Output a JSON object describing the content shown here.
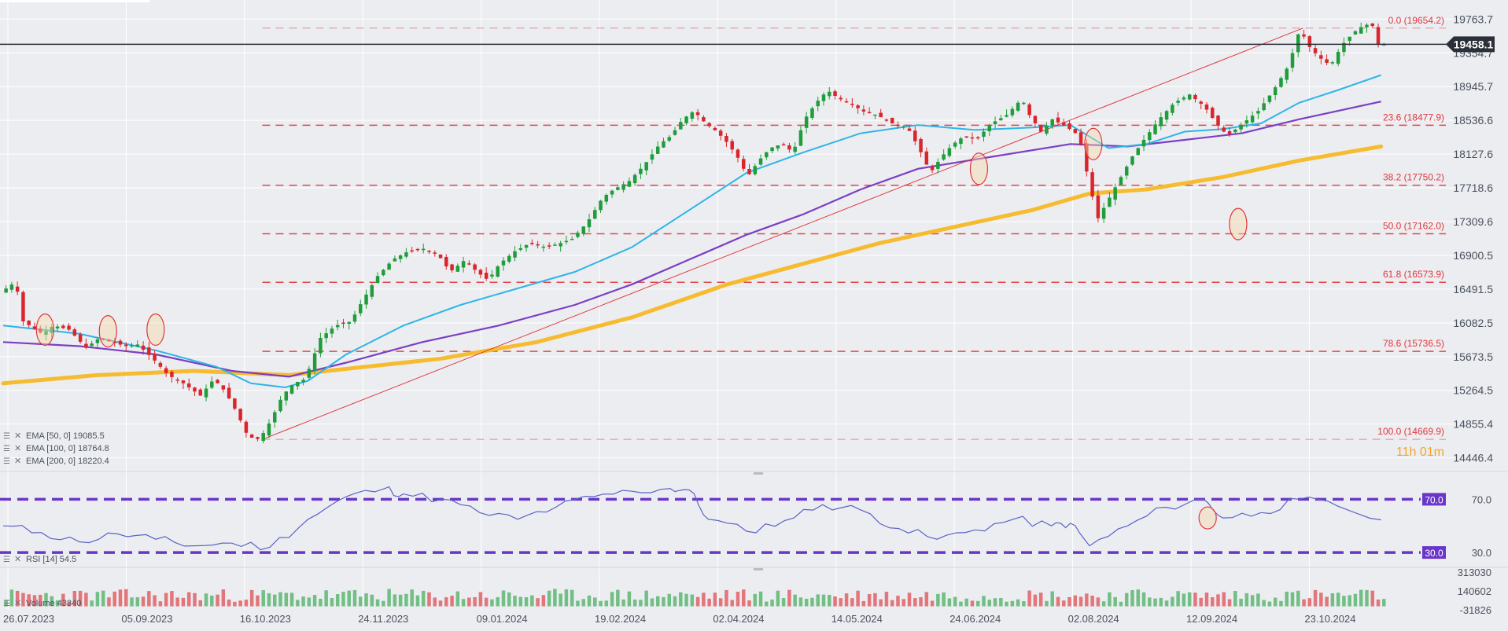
{
  "chart_data": {
    "type": "candlestick",
    "main": {
      "ylim": [
        14300,
        19900
      ],
      "y_ticks": [
        "19763.7",
        "19354.7",
        "18945.7",
        "18536.6",
        "18127.6",
        "17718.6",
        "17309.6",
        "16900.5",
        "16491.5",
        "16082.5",
        "15673.5",
        "15264.5",
        "14855.4",
        "14446.4"
      ],
      "current_price": 19458.1,
      "current_price_label": "19458.1",
      "countdown": "11h 01m",
      "fib_levels": [
        {
          "label": "0.0 (19654.2)",
          "value": 19654.2
        },
        {
          "label": "23.6 (18477.9)",
          "value": 18477.9
        },
        {
          "label": "38.2 (17750.2)",
          "value": 17750.2
        },
        {
          "label": "50.0 (17162.0)",
          "value": 17162.0
        },
        {
          "label": "61.8 (16573.9)",
          "value": 16573.9
        },
        {
          "label": "78.6 (15736.5)",
          "value": 15736.5
        },
        {
          "label": "100.0 (14669.9)",
          "value": 14669.9
        }
      ],
      "indicators": [
        {
          "label": "EMA [50, 0] 19085.5",
          "color": "#2fb5e6",
          "value": 19085.5
        },
        {
          "label": "EMA [100, 0] 18764.8",
          "color": "#7b3fc4",
          "value": 18764.8
        },
        {
          "label": "EMA [200, 0] 18220.4",
          "color": "#f6bb2e",
          "value": 18220.4
        }
      ],
      "indicator_icons": [
        "settings-icon",
        "close-icon"
      ],
      "price_path": [
        [
          0,
          16450
        ],
        [
          8,
          16580
        ],
        [
          12,
          16100
        ],
        [
          22,
          15950
        ],
        [
          28,
          16050
        ],
        [
          36,
          16000
        ],
        [
          45,
          15780
        ],
        [
          52,
          15900
        ],
        [
          58,
          15850
        ],
        [
          66,
          15800
        ],
        [
          72,
          15820
        ],
        [
          80,
          15650
        ],
        [
          88,
          15450
        ],
        [
          96,
          15350
        ],
        [
          105,
          15200
        ],
        [
          112,
          15400
        ],
        [
          118,
          15250
        ],
        [
          124,
          15000
        ],
        [
          130,
          14700
        ],
        [
          136,
          14669.9
        ],
        [
          142,
          14900
        ],
        [
          148,
          15200
        ],
        [
          154,
          15350
        ],
        [
          160,
          15400
        ],
        [
          168,
          15900
        ],
        [
          176,
          16050
        ],
        [
          184,
          16100
        ],
        [
          190,
          16350
        ],
        [
          198,
          16650
        ],
        [
          206,
          16850
        ],
        [
          214,
          16950
        ],
        [
          222,
          16980
        ],
        [
          230,
          16900
        ],
        [
          236,
          16700
        ],
        [
          244,
          16850
        ],
        [
          250,
          16700
        ],
        [
          256,
          16600
        ],
        [
          262,
          16800
        ],
        [
          270,
          16950
        ],
        [
          278,
          17050
        ],
        [
          286,
          17000
        ],
        [
          294,
          17050
        ],
        [
          300,
          17100
        ],
        [
          308,
          17300
        ],
        [
          316,
          17600
        ],
        [
          322,
          17700
        ],
        [
          330,
          17800
        ],
        [
          338,
          18000
        ],
        [
          346,
          18250
        ],
        [
          352,
          18350
        ],
        [
          358,
          18550
        ],
        [
          364,
          18650
        ],
        [
          370,
          18500
        ],
        [
          376,
          18400
        ],
        [
          382,
          18250
        ],
        [
          388,
          18050
        ],
        [
          392,
          17850
        ],
        [
          398,
          18050
        ],
        [
          404,
          18200
        ],
        [
          410,
          18250
        ],
        [
          416,
          18150
        ],
        [
          422,
          18550
        ],
        [
          428,
          18750
        ],
        [
          434,
          18900
        ],
        [
          440,
          18800
        ],
        [
          446,
          18750
        ],
        [
          452,
          18650
        ],
        [
          460,
          18600
        ],
        [
          468,
          18500
        ],
        [
          476,
          18450
        ],
        [
          482,
          18200
        ],
        [
          488,
          17900
        ],
        [
          494,
          18100
        ],
        [
          500,
          18250
        ],
        [
          506,
          18350
        ],
        [
          512,
          18300
        ],
        [
          520,
          18500
        ],
        [
          528,
          18600
        ],
        [
          536,
          18800
        ],
        [
          540,
          18600
        ],
        [
          546,
          18400
        ],
        [
          552,
          18550
        ],
        [
          560,
          18450
        ],
        [
          566,
          18350
        ],
        [
          572,
          17700
        ],
        [
          576,
          17350
        ],
        [
          582,
          17600
        ],
        [
          588,
          17850
        ],
        [
          594,
          18100
        ],
        [
          600,
          18300
        ],
        [
          608,
          18550
        ],
        [
          616,
          18750
        ],
        [
          624,
          18850
        ],
        [
          632,
          18700
        ],
        [
          638,
          18500
        ],
        [
          644,
          18350
        ],
        [
          652,
          18500
        ],
        [
          660,
          18650
        ],
        [
          668,
          18900
        ],
        [
          676,
          19200
        ],
        [
          682,
          19654.2
        ],
        [
          686,
          19450
        ],
        [
          692,
          19300
        ],
        [
          698,
          19200
        ],
        [
          704,
          19450
        ],
        [
          710,
          19600
        ],
        [
          716,
          19700
        ],
        [
          720,
          19680
        ],
        [
          723,
          19458.1
        ]
      ],
      "ema50_path": [
        [
          0,
          16050
        ],
        [
          40,
          15950
        ],
        [
          80,
          15750
        ],
        [
          112,
          15550
        ],
        [
          130,
          15350
        ],
        [
          148,
          15300
        ],
        [
          160,
          15380
        ],
        [
          180,
          15700
        ],
        [
          210,
          16050
        ],
        [
          240,
          16300
        ],
        [
          270,
          16500
        ],
        [
          300,
          16700
        ],
        [
          330,
          17000
        ],
        [
          360,
          17450
        ],
        [
          390,
          17900
        ],
        [
          420,
          18150
        ],
        [
          450,
          18380
        ],
        [
          480,
          18480
        ],
        [
          510,
          18420
        ],
        [
          540,
          18450
        ],
        [
          560,
          18480
        ],
        [
          580,
          18200
        ],
        [
          600,
          18250
        ],
        [
          620,
          18400
        ],
        [
          640,
          18430
        ],
        [
          660,
          18500
        ],
        [
          680,
          18750
        ],
        [
          700,
          18900
        ],
        [
          723,
          19085.5
        ]
      ],
      "ema100_path": [
        [
          0,
          15850
        ],
        [
          40,
          15800
        ],
        [
          80,
          15700
        ],
        [
          120,
          15500
        ],
        [
          150,
          15430
        ],
        [
          180,
          15600
        ],
        [
          220,
          15850
        ],
        [
          260,
          16050
        ],
        [
          300,
          16300
        ],
        [
          330,
          16550
        ],
        [
          360,
          16850
        ],
        [
          390,
          17150
        ],
        [
          420,
          17400
        ],
        [
          450,
          17700
        ],
        [
          480,
          17950
        ],
        [
          520,
          18100
        ],
        [
          560,
          18250
        ],
        [
          590,
          18220
        ],
        [
          620,
          18300
        ],
        [
          650,
          18380
        ],
        [
          680,
          18550
        ],
        [
          700,
          18650
        ],
        [
          723,
          18764.8
        ]
      ],
      "ema200_path": [
        [
          0,
          15350
        ],
        [
          50,
          15450
        ],
        [
          100,
          15500
        ],
        [
          150,
          15450
        ],
        [
          190,
          15550
        ],
        [
          230,
          15650
        ],
        [
          280,
          15850
        ],
        [
          330,
          16150
        ],
        [
          380,
          16550
        ],
        [
          420,
          16800
        ],
        [
          460,
          17050
        ],
        [
          500,
          17250
        ],
        [
          540,
          17450
        ],
        [
          570,
          17650
        ],
        [
          600,
          17700
        ],
        [
          640,
          17850
        ],
        [
          680,
          18050
        ],
        [
          723,
          18220.4
        ]
      ],
      "trendline": [
        [
          136,
          14669.9
        ],
        [
          682,
          19654.2
        ]
      ],
      "highlight_markers": [
        [
          22,
          16000
        ],
        [
          55,
          15980
        ],
        [
          80,
          16000
        ],
        [
          512,
          17950
        ],
        [
          572,
          18250
        ],
        [
          648,
          17280
        ]
      ]
    },
    "rsi": {
      "label": "RSI [14] 54.5",
      "value": 54.5,
      "ylim": [
        20,
        85
      ],
      "y_ticks": [
        "70.0",
        "30.0"
      ],
      "level_labels": [
        "70.0",
        "30.0"
      ],
      "levels": [
        70,
        30
      ],
      "path": [
        [
          0,
          50
        ],
        [
          20,
          45
        ],
        [
          40,
          38
        ],
        [
          60,
          44
        ],
        [
          80,
          40
        ],
        [
          100,
          35
        ],
        [
          120,
          37
        ],
        [
          140,
          34
        ],
        [
          160,
          55
        ],
        [
          180,
          72
        ],
        [
          200,
          78
        ],
        [
          210,
          74
        ],
        [
          230,
          70
        ],
        [
          250,
          60
        ],
        [
          270,
          55
        ],
        [
          290,
          64
        ],
        [
          310,
          72
        ],
        [
          330,
          76
        ],
        [
          350,
          78
        ],
        [
          360,
          77
        ],
        [
          370,
          55
        ],
        [
          390,
          46
        ],
        [
          410,
          54
        ],
        [
          430,
          66
        ],
        [
          450,
          62
        ],
        [
          470,
          48
        ],
        [
          490,
          40
        ],
        [
          510,
          47
        ],
        [
          530,
          55
        ],
        [
          550,
          50
        ],
        [
          560,
          52
        ],
        [
          570,
          35
        ],
        [
          590,
          50
        ],
        [
          610,
          64
        ],
        [
          630,
          70
        ],
        [
          640,
          56
        ],
        [
          660,
          60
        ],
        [
          680,
          70
        ],
        [
          700,
          65
        ],
        [
          723,
          54.5
        ]
      ],
      "highlight_markers": [
        [
          632,
          56
        ]
      ]
    },
    "volume": {
      "label": "Volume 43340",
      "ylim": [
        -31826,
        313030
      ],
      "y_ticks": [
        "313030",
        "140602",
        "-31826"
      ]
    },
    "x_labels": [
      "26.07.2023",
      "05.09.2023",
      "16.10.2023",
      "24.11.2023",
      "09.01.2024",
      "19.02.2024",
      "02.04.2024",
      "14.05.2024",
      "24.06.2024",
      "02.08.2024",
      "12.09.2024",
      "23.10.2024"
    ],
    "x_label_positions": [
      0,
      28,
      56,
      84,
      112,
      140,
      168,
      196,
      224,
      252,
      280,
      308
    ]
  }
}
